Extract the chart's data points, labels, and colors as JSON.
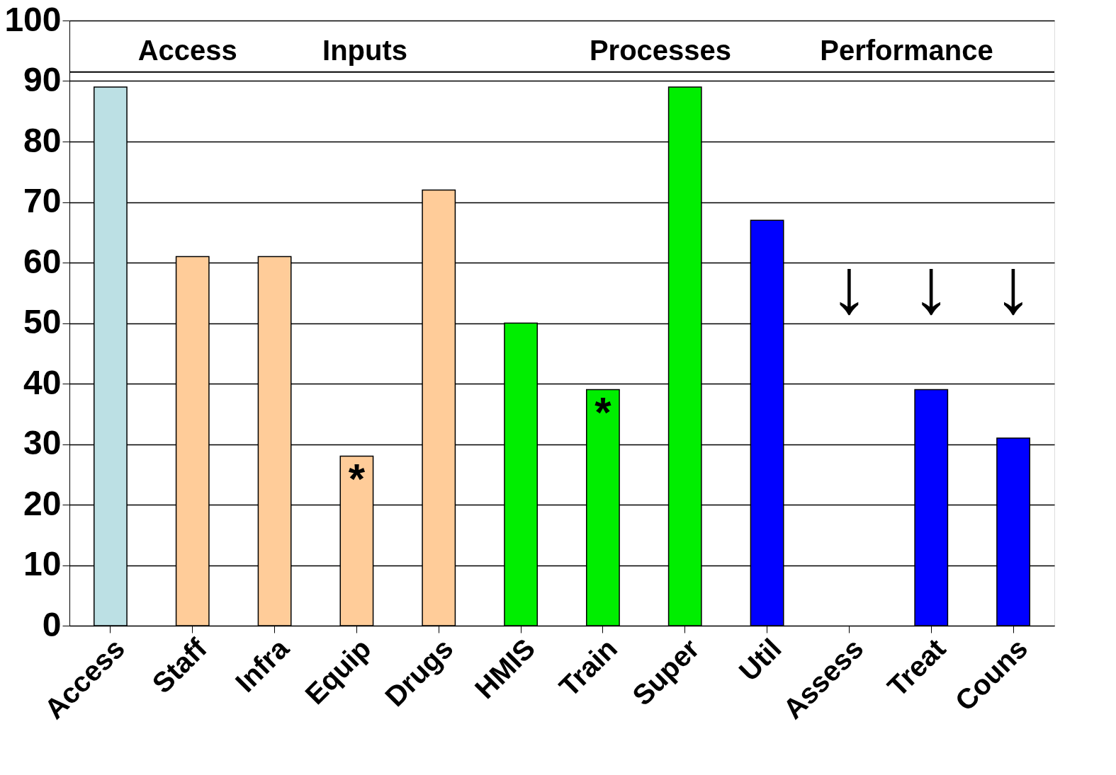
{
  "chart_data": {
    "type": "bar",
    "categories": [
      "Access",
      "Staff",
      "Infra",
      "Equip",
      "Drugs",
      "HMIS",
      "Train",
      "Super",
      "Util",
      "Assess",
      "Treat",
      "Couns"
    ],
    "values": [
      89,
      61,
      61,
      28,
      72,
      50,
      39,
      89,
      67,
      0,
      39,
      31
    ],
    "colors": [
      "#bce0e4",
      "#ffcc99",
      "#ffcc99",
      "#ffcc99",
      "#ffcc99",
      "#00ee00",
      "#00ee00",
      "#00ee00",
      "#0000ff",
      "#bce0e4",
      "#0000ff",
      "#0000ff"
    ],
    "ylim": [
      0,
      100
    ],
    "yticks": [
      0,
      10,
      20,
      30,
      40,
      50,
      60,
      70,
      80,
      90,
      100
    ],
    "grid": "y",
    "legend": false,
    "ref_lines": [
      {
        "axis": "y",
        "value": 91.5,
        "color": "#000000"
      }
    ],
    "annotations": [
      "Access",
      "Inputs",
      "Processes",
      "Performance",
      {
        "text": "*",
        "x": "Equip",
        "y": 28
      },
      {
        "text": "*",
        "x": "Train",
        "y": 39
      },
      "↓",
      "↓",
      "↓"
    ]
  }
}
